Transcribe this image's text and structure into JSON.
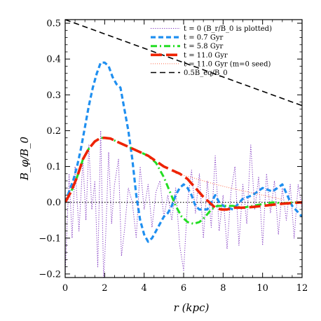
{
  "chart_data": {
    "type": "line",
    "xlabel": "r (kpc)",
    "ylabel": "B_φ/B_0",
    "xlim": [
      0,
      12
    ],
    "ylim": [
      -0.21,
      0.51
    ],
    "x_ticks": [
      0,
      2,
      4,
      6,
      8,
      10,
      12
    ],
    "y_ticks": [
      -0.2,
      -0.1,
      0.0,
      0.1,
      0.2,
      0.3,
      0.4,
      0.5
    ],
    "x_tick_labels": [
      "0",
      "2",
      "4",
      "6",
      "8",
      "10",
      "12"
    ],
    "y_tick_labels": [
      "−0.2",
      "−0.1",
      "0.0",
      "0.1",
      "0.2",
      "0.3",
      "0.4",
      "0.5"
    ],
    "grid": false,
    "legend_position": "top-right",
    "zero_line": true,
    "series": [
      {
        "name": "t = 0   (B_r/B_0 is plotted)",
        "color": "#7b2fbe",
        "style": "dotted",
        "x": [
          0,
          0.2,
          0.35,
          0.5,
          0.7,
          0.9,
          1.05,
          1.2,
          1.35,
          1.5,
          1.65,
          1.8,
          1.95,
          2.05,
          2.2,
          2.35,
          2.5,
          2.7,
          2.85,
          3.0,
          3.2,
          3.4,
          3.6,
          3.8,
          4.0,
          4.2,
          4.4,
          4.6,
          4.8,
          5.0,
          5.2,
          5.4,
          5.6,
          5.8,
          6.0,
          6.2,
          6.4,
          6.6,
          6.8,
          7.0,
          7.2,
          7.4,
          7.6,
          7.8,
          8.0,
          8.2,
          8.4,
          8.6,
          8.8,
          9.0,
          9.2,
          9.4,
          9.6,
          9.8,
          10.0,
          10.2,
          10.4,
          10.6,
          10.8,
          11.0,
          11.2,
          11.4,
          11.6,
          11.8,
          12.0
        ],
        "y": [
          -0.2,
          0.08,
          -0.1,
          0.1,
          -0.08,
          0.12,
          -0.05,
          0.16,
          -0.02,
          0.06,
          -0.18,
          0.2,
          -0.22,
          -0.1,
          0.14,
          -0.06,
          0.05,
          0.12,
          -0.15,
          -0.08,
          0.04,
          0.0,
          -0.1,
          0.1,
          -0.02,
          0.05,
          -0.07,
          0.03,
          0.06,
          -0.04,
          0.02,
          -0.05,
          0.04,
          -0.12,
          -0.19,
          0.0,
          0.09,
          -0.03,
          0.08,
          -0.1,
          0.06,
          -0.07,
          0.13,
          -0.08,
          0.02,
          -0.13,
          0.03,
          0.1,
          -0.12,
          0.05,
          -0.06,
          0.16,
          -0.02,
          0.07,
          -0.12,
          0.08,
          -0.03,
          0.06,
          -0.09,
          0.04,
          -0.05,
          0.05,
          -0.1,
          0.05,
          -0.02
        ]
      },
      {
        "name": "t = 0.7 Gyr",
        "color": "#1f8ff0",
        "style": "dashed",
        "x": [
          0,
          0.2,
          0.4,
          0.6,
          0.8,
          1.0,
          1.2,
          1.4,
          1.6,
          1.8,
          2.0,
          2.2,
          2.4,
          2.6,
          2.8,
          3.0,
          3.2,
          3.4,
          3.6,
          3.8,
          4.0,
          4.2,
          4.4,
          4.6,
          4.8,
          5.0,
          5.2,
          5.4,
          5.6,
          5.8,
          6.0,
          6.2,
          6.4,
          6.6,
          6.8,
          7.0,
          7.2,
          7.4,
          7.6,
          7.8,
          8.0,
          8.5,
          9.0,
          9.5,
          10.0,
          10.5,
          11.0,
          11.5,
          12.0
        ],
        "y": [
          0.0,
          0.03,
          0.06,
          0.1,
          0.15,
          0.21,
          0.27,
          0.32,
          0.36,
          0.39,
          0.39,
          0.38,
          0.35,
          0.33,
          0.32,
          0.26,
          0.2,
          0.12,
          0.02,
          -0.05,
          -0.09,
          -0.11,
          -0.1,
          -0.08,
          -0.06,
          -0.04,
          -0.03,
          -0.01,
          0.02,
          0.04,
          0.05,
          0.04,
          0.02,
          -0.01,
          -0.02,
          -0.02,
          -0.02,
          0.0,
          0.02,
          0.0,
          -0.01,
          -0.02,
          0.01,
          0.02,
          0.04,
          0.03,
          0.05,
          -0.01,
          -0.04
        ]
      },
      {
        "name": "t = 5.8 Gyr",
        "color": "#22dd22",
        "style": "dashdot",
        "x": [
          0,
          0.3,
          0.6,
          0.9,
          1.2,
          1.5,
          1.8,
          2.0,
          2.3,
          2.6,
          3.0,
          3.4,
          3.8,
          4.2,
          4.6,
          5.0,
          5.3,
          5.6,
          5.9,
          6.2,
          6.5,
          6.8,
          7.1,
          7.4,
          7.7,
          8.0,
          8.5,
          9.0,
          9.5,
          10.0,
          10.5,
          11.0,
          11.5,
          12.0
        ],
        "y": [
          0.0,
          0.03,
          0.07,
          0.12,
          0.15,
          0.17,
          0.18,
          0.18,
          0.178,
          0.17,
          0.16,
          0.15,
          0.14,
          0.13,
          0.11,
          0.07,
          0.03,
          -0.01,
          -0.04,
          -0.055,
          -0.06,
          -0.055,
          -0.04,
          -0.02,
          -0.01,
          -0.01,
          -0.01,
          -0.015,
          -0.01,
          -0.005,
          0.0,
          -0.003,
          0.0,
          0.0
        ]
      },
      {
        "name": "t = 11.0 Gyr",
        "color": "#ee2200",
        "style": "longdash",
        "x": [
          0,
          0.3,
          0.6,
          0.9,
          1.2,
          1.5,
          1.8,
          2.0,
          2.3,
          2.6,
          3.0,
          3.4,
          3.8,
          4.2,
          4.6,
          5.0,
          5.4,
          5.8,
          6.2,
          6.6,
          7.0,
          7.3,
          7.6,
          7.9,
          8.2,
          8.6,
          9.0,
          9.5,
          10.0,
          10.5,
          11.0,
          11.5,
          12.0
        ],
        "y": [
          0.0,
          0.03,
          0.07,
          0.12,
          0.15,
          0.17,
          0.18,
          0.18,
          0.178,
          0.17,
          0.16,
          0.15,
          0.14,
          0.13,
          0.115,
          0.1,
          0.09,
          0.08,
          0.065,
          0.04,
          0.015,
          0.0,
          -0.015,
          -0.02,
          -0.02,
          -0.015,
          -0.015,
          -0.013,
          -0.01,
          -0.007,
          -0.004,
          -0.002,
          0.0
        ]
      },
      {
        "name": "t = 11.0 Gyr (m=0 seed)",
        "color": "#ff6a4a",
        "style": "thindotted",
        "x": [
          5.6,
          6.0,
          6.5,
          7.0,
          7.5,
          8.0,
          8.5,
          9.0,
          9.5,
          10.0,
          10.5,
          11.0
        ],
        "y": [
          0.08,
          0.075,
          0.068,
          0.06,
          0.052,
          0.045,
          0.038,
          0.032,
          0.026,
          0.02,
          0.014,
          0.008
        ]
      },
      {
        "name": "0.5B_eq/B_0",
        "color": "#000000",
        "style": "blackdash",
        "x": [
          0,
          12
        ],
        "y": [
          0.51,
          0.27
        ]
      }
    ]
  }
}
